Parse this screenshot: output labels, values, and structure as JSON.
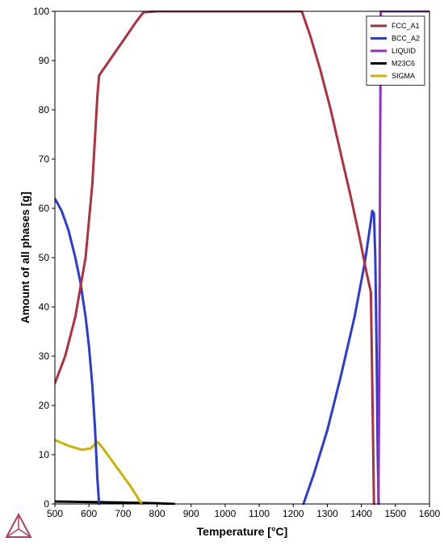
{
  "chart_data": {
    "type": "line",
    "xlabel": "Temperature [°C]",
    "ylabel": "Amount of all phases [g]",
    "xlim": [
      500,
      1600
    ],
    "ylim": [
      0,
      100
    ],
    "xticks": [
      500,
      600,
      700,
      800,
      900,
      1000,
      1100,
      1200,
      1300,
      1400,
      1500,
      1600
    ],
    "yticks": [
      0,
      10,
      20,
      30,
      40,
      50,
      60,
      70,
      80,
      90,
      100
    ],
    "grid": false,
    "legend_position": "top-right",
    "series": [
      {
        "name": "FCC_A1",
        "color": "#b03040",
        "legend_color": "#8b3a3a",
        "points": [
          [
            500,
            24.5
          ],
          [
            530,
            30
          ],
          [
            560,
            38
          ],
          [
            590,
            50
          ],
          [
            610,
            65
          ],
          [
            625,
            83
          ],
          [
            630,
            87
          ],
          [
            660,
            90
          ],
          [
            700,
            94
          ],
          [
            740,
            98
          ],
          [
            760,
            99.8
          ],
          [
            800,
            100
          ],
          [
            900,
            100
          ],
          [
            1000,
            100
          ],
          [
            1100,
            100
          ],
          [
            1200,
            100
          ],
          [
            1225,
            100
          ],
          [
            1250,
            95
          ],
          [
            1280,
            88
          ],
          [
            1310,
            80
          ],
          [
            1340,
            71
          ],
          [
            1370,
            62
          ],
          [
            1395,
            54
          ],
          [
            1415,
            47
          ],
          [
            1428,
            43
          ],
          [
            1432,
            25
          ],
          [
            1435,
            10
          ],
          [
            1437,
            0
          ]
        ]
      },
      {
        "name": "BCC_A2",
        "color": "#2a3bd6",
        "legend_color": "#2a3bd6",
        "segments": [
          [
            [
              500,
              62
            ],
            [
              520,
              59.5
            ],
            [
              540,
              55.5
            ],
            [
              560,
              50
            ],
            [
              575,
              45
            ],
            [
              590,
              38
            ],
            [
              600,
              32
            ],
            [
              610,
              24
            ],
            [
              618,
              15
            ],
            [
              625,
              5
            ],
            [
              630,
              0
            ]
          ],
          [
            [
              1230,
              0
            ],
            [
              1260,
              6
            ],
            [
              1300,
              15
            ],
            [
              1340,
              26
            ],
            [
              1380,
              38
            ],
            [
              1410,
              49
            ],
            [
              1425,
              56
            ],
            [
              1432,
              59.5
            ],
            [
              1437,
              59
            ],
            [
              1441,
              50
            ],
            [
              1445,
              30
            ],
            [
              1448,
              10
            ],
            [
              1451,
              0
            ]
          ]
        ]
      },
      {
        "name": "LIQUID",
        "color": "#9030c0",
        "legend_color": "#9030c0",
        "points": [
          [
            1450,
            0
          ],
          [
            1453,
            30
          ],
          [
            1455,
            70
          ],
          [
            1457,
            100
          ],
          [
            1600,
            100
          ]
        ]
      },
      {
        "name": "M23C6",
        "color": "#000000",
        "legend_color": "#000000",
        "points": [
          [
            500,
            0.5
          ],
          [
            600,
            0.4
          ],
          [
            700,
            0.3
          ],
          [
            800,
            0.15
          ],
          [
            850,
            0
          ]
        ]
      },
      {
        "name": "SIGMA",
        "color": "#c8b400",
        "legend_color": "#c8b400",
        "points": [
          [
            500,
            13
          ],
          [
            540,
            11.8
          ],
          [
            580,
            11
          ],
          [
            605,
            11.3
          ],
          [
            625,
            12.6
          ],
          [
            640,
            11.4
          ],
          [
            680,
            7.6
          ],
          [
            720,
            3.8
          ],
          [
            755,
            0
          ]
        ]
      }
    ]
  }
}
